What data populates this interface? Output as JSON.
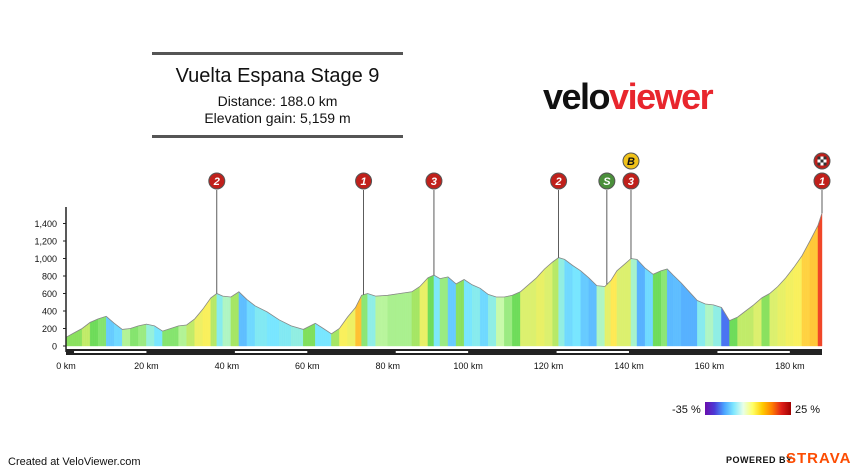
{
  "header": {
    "title": "Vuelta Espana Stage 9",
    "distance": "Distance: 188.0 km",
    "elevation_gain": "Elevation gain: 5,159 m"
  },
  "brand": {
    "part1": "velo",
    "part2": "viewer"
  },
  "legend": {
    "min_label": "-35 %",
    "max_label": "25 %"
  },
  "footer": {
    "credit": "Created at VeloViewer.com",
    "powered_by": "POWERED BY",
    "strava": "STRAVA"
  },
  "colors": {
    "axis": "#222222",
    "marker_red": "#c0201b",
    "marker_green": "#4a8f3a",
    "marker_yellow": "#f0c21a",
    "brand_red": "#e8262d",
    "strava_orange": "#fc4c02"
  },
  "chart_data": {
    "type": "area",
    "title": "",
    "xlabel": "",
    "ylabel": "",
    "xlim": [
      0,
      188
    ],
    "ylim": [
      0,
      1500
    ],
    "x_ticks": [
      "0 km",
      "20 km",
      "40 km",
      "60 km",
      "80 km",
      "100 km",
      "120 km",
      "140 km",
      "160 km",
      "180 km"
    ],
    "y_ticks": [
      "0",
      "200",
      "400",
      "600",
      "800",
      "1,000",
      "1,200",
      "1,400"
    ],
    "profile": [
      [
        0,
        100
      ],
      [
        2,
        150
      ],
      [
        4,
        200
      ],
      [
        6,
        270
      ],
      [
        8,
        310
      ],
      [
        10,
        340
      ],
      [
        12,
        260
      ],
      [
        14,
        190
      ],
      [
        16,
        200
      ],
      [
        18,
        230
      ],
      [
        20,
        250
      ],
      [
        22,
        230
      ],
      [
        24,
        170
      ],
      [
        26,
        200
      ],
      [
        28,
        230
      ],
      [
        30,
        240
      ],
      [
        32,
        310
      ],
      [
        34,
        420
      ],
      [
        36,
        550
      ],
      [
        37.5,
        600
      ],
      [
        39,
        570
      ],
      [
        41,
        560
      ],
      [
        43,
        620
      ],
      [
        45,
        530
      ],
      [
        47,
        460
      ],
      [
        50,
        390
      ],
      [
        53,
        300
      ],
      [
        56,
        230
      ],
      [
        59,
        190
      ],
      [
        62,
        260
      ],
      [
        64,
        200
      ],
      [
        66,
        140
      ],
      [
        68,
        200
      ],
      [
        70,
        330
      ],
      [
        72,
        440
      ],
      [
        73.5,
        580
      ],
      [
        75,
        600
      ],
      [
        77,
        570
      ],
      [
        80,
        580
      ],
      [
        83,
        600
      ],
      [
        86,
        620
      ],
      [
        88,
        680
      ],
      [
        90,
        780
      ],
      [
        91.5,
        810
      ],
      [
        93,
        770
      ],
      [
        95,
        790
      ],
      [
        97,
        710
      ],
      [
        99,
        760
      ],
      [
        101,
        700
      ],
      [
        103,
        660
      ],
      [
        105,
        590
      ],
      [
        107,
        560
      ],
      [
        109,
        560
      ],
      [
        111,
        580
      ],
      [
        113,
        620
      ],
      [
        115,
        700
      ],
      [
        117,
        780
      ],
      [
        119,
        880
      ],
      [
        121,
        960
      ],
      [
        122.5,
        1010
      ],
      [
        124,
        990
      ],
      [
        126,
        920
      ],
      [
        128,
        860
      ],
      [
        130,
        780
      ],
      [
        132,
        690
      ],
      [
        134,
        680
      ],
      [
        135.5,
        750
      ],
      [
        137,
        860
      ],
      [
        139,
        940
      ],
      [
        140.5,
        1000
      ],
      [
        142,
        990
      ],
      [
        144,
        890
      ],
      [
        146,
        820
      ],
      [
        148,
        860
      ],
      [
        149.5,
        880
      ],
      [
        151,
        810
      ],
      [
        153,
        720
      ],
      [
        155,
        620
      ],
      [
        157,
        520
      ],
      [
        159,
        480
      ],
      [
        161,
        470
      ],
      [
        163,
        440
      ],
      [
        165,
        290
      ],
      [
        167,
        330
      ],
      [
        169,
        400
      ],
      [
        171,
        470
      ],
      [
        173,
        550
      ],
      [
        175,
        600
      ],
      [
        177,
        680
      ],
      [
        179,
        780
      ],
      [
        181,
        900
      ],
      [
        183,
        1030
      ],
      [
        185,
        1200
      ],
      [
        187,
        1380
      ],
      [
        188,
        1520
      ]
    ],
    "markers": [
      {
        "km": 37.5,
        "label": "2",
        "type": "climb"
      },
      {
        "km": 74,
        "label": "1",
        "type": "climb"
      },
      {
        "km": 91.5,
        "label": "3",
        "type": "climb"
      },
      {
        "km": 122.5,
        "label": "2",
        "type": "climb"
      },
      {
        "km": 134.5,
        "label": "S",
        "type": "sprint"
      },
      {
        "km": 140.5,
        "label": "3",
        "type": "climb"
      },
      {
        "km": 140.5,
        "label": "B",
        "type": "bonus"
      },
      {
        "km": 188,
        "label": "1",
        "type": "climb"
      },
      {
        "km": 188,
        "label": "",
        "type": "finish"
      }
    ]
  }
}
